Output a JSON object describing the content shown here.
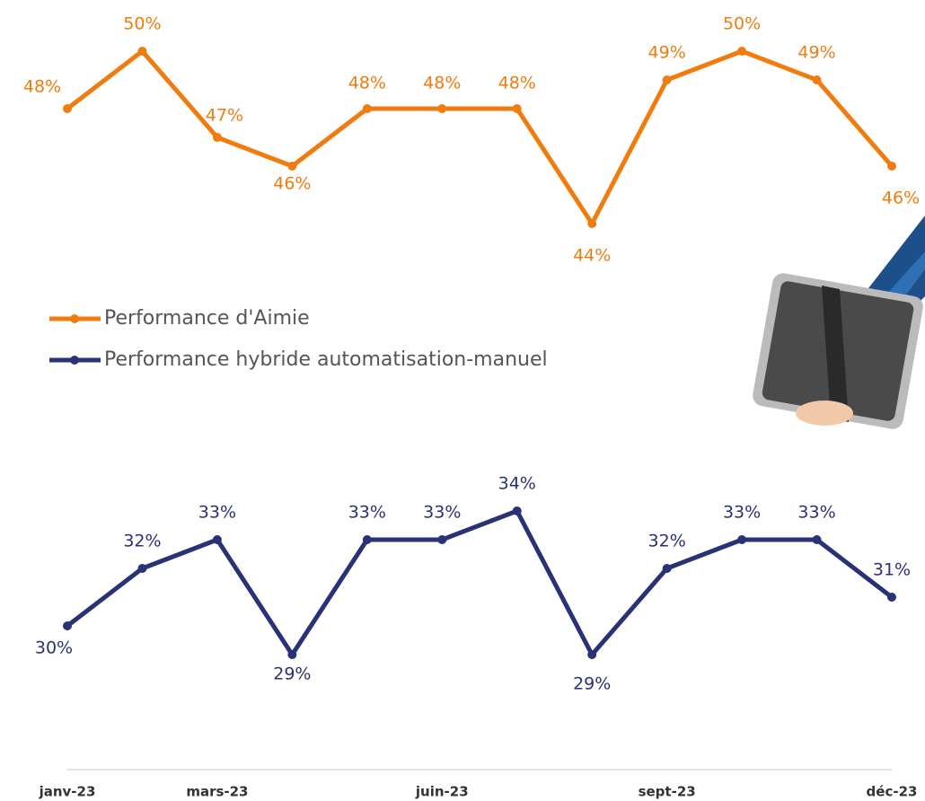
{
  "chart_data": {
    "type": "line",
    "categories": [
      "janv-23",
      null,
      "mars-23",
      null,
      null,
      "juin-23",
      null,
      null,
      "sept-23",
      null,
      null,
      "déc-23"
    ],
    "ylim": [
      25,
      51
    ],
    "series": [
      {
        "name": "Performance d'Aimie",
        "color": "#f07c0f",
        "values": [
          48,
          50,
          47,
          46,
          48,
          48,
          48,
          44,
          49,
          50,
          49,
          46
        ],
        "value_labels": [
          "48%",
          "50%",
          "47%",
          "46%",
          "48%",
          "48%",
          "48%",
          "44%",
          "49%",
          "50%",
          "49%",
          "46%"
        ]
      },
      {
        "name": "Performance hybride automatisation-manuel",
        "color": "#283275",
        "values": [
          30,
          32,
          33,
          29,
          33,
          33,
          34,
          29,
          32,
          33,
          33,
          31
        ],
        "value_labels": [
          "30%",
          "32%",
          "33%",
          "29%",
          "33%",
          "33%",
          "34%",
          "29%",
          "32%",
          "33%",
          "33%",
          "31%"
        ]
      }
    ]
  }
}
